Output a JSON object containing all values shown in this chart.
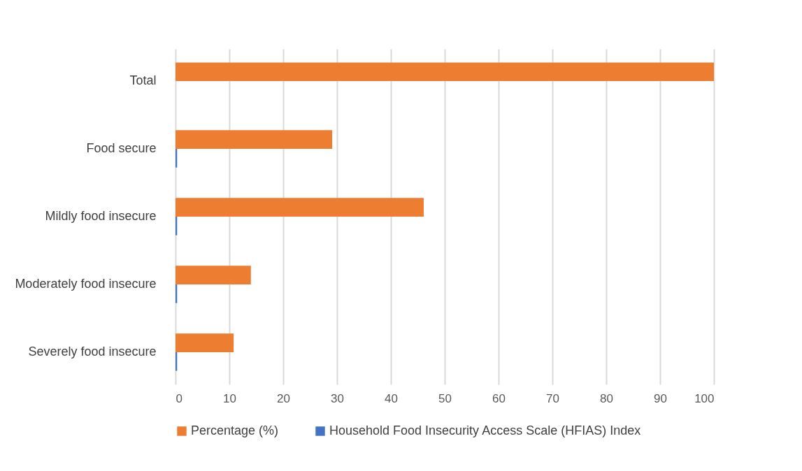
{
  "chart_data": {
    "type": "bar",
    "orientation": "horizontal",
    "categories": [
      "Total",
      "Food secure",
      "Mildly food insecure",
      "Moderately food insecure",
      "Severely food insecure"
    ],
    "series": [
      {
        "name": "Percentage (%)",
        "color": "#ed7d31",
        "values": [
          100,
          29.1,
          46.1,
          14.0,
          10.8
        ]
      },
      {
        "name": "Household Food Insecurity Access Scale (HFIAS) Index",
        "color": "#4472c4",
        "values": [
          null,
          0.3,
          0.3,
          0.3,
          0.3
        ]
      }
    ],
    "xlim": [
      0,
      100
    ],
    "xticks": [
      0,
      10,
      20,
      30,
      40,
      50,
      60,
      70,
      80,
      90,
      100
    ],
    "grid": "x",
    "legend": "bottom"
  }
}
